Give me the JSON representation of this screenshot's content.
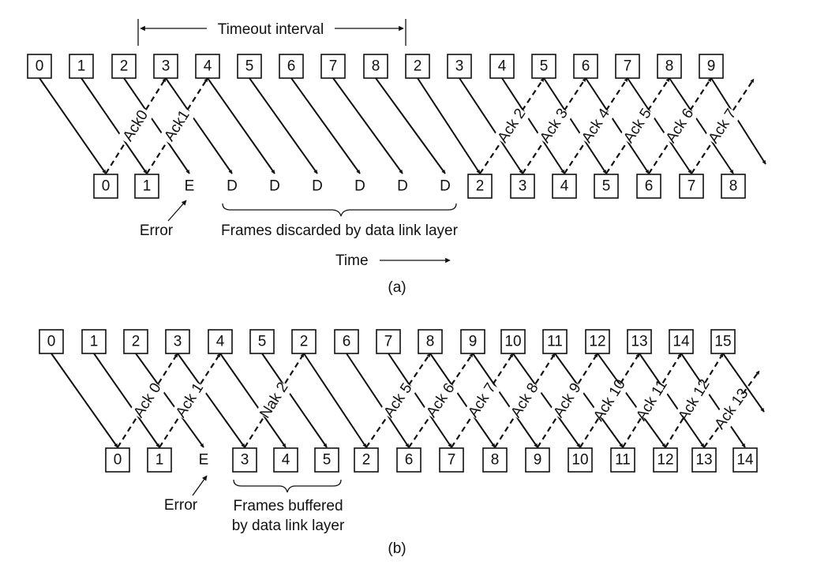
{
  "part_a": {
    "caption": "(a)",
    "timeout_label": "Timeout interval",
    "sent": [
      "0",
      "1",
      "2",
      "3",
      "4",
      "5",
      "6",
      "7",
      "8",
      "2",
      "3",
      "4",
      "5",
      "6",
      "7",
      "8",
      "9"
    ],
    "received": [
      "0",
      "1",
      "E",
      "D",
      "D",
      "D",
      "D",
      "D",
      "D",
      "2",
      "3",
      "4",
      "5",
      "6",
      "7",
      "8"
    ],
    "acks": [
      "Ack0",
      "Ack1",
      "Ack 2",
      "Ack 3",
      "Ack 4",
      "Ack 5",
      "Ack 6",
      "Ack 7"
    ],
    "error_label": "Error",
    "discard_label": "Frames discarded by data link layer",
    "time_label": "Time"
  },
  "part_b": {
    "caption": "(b)",
    "sent": [
      "0",
      "1",
      "2",
      "3",
      "4",
      "5",
      "2",
      "6",
      "7",
      "8",
      "9",
      "10",
      "11",
      "12",
      "13",
      "14",
      "15"
    ],
    "received": [
      "0",
      "1",
      "E",
      "3",
      "4",
      "5",
      "2",
      "6",
      "7",
      "8",
      "9",
      "10",
      "11",
      "12",
      "13",
      "14"
    ],
    "acks": [
      "Ack 0",
      "Ack 1",
      "Nak 2",
      "Ack 5",
      "Ack 6",
      "Ack 7",
      "Ack 8",
      "Ack 9",
      "Ack 10",
      "Ack 11",
      "Ack 12",
      "Ack 13"
    ],
    "error_label": "Error",
    "buffer_label_1": "Frames buffered",
    "buffer_label_2": "by data link layer"
  }
}
